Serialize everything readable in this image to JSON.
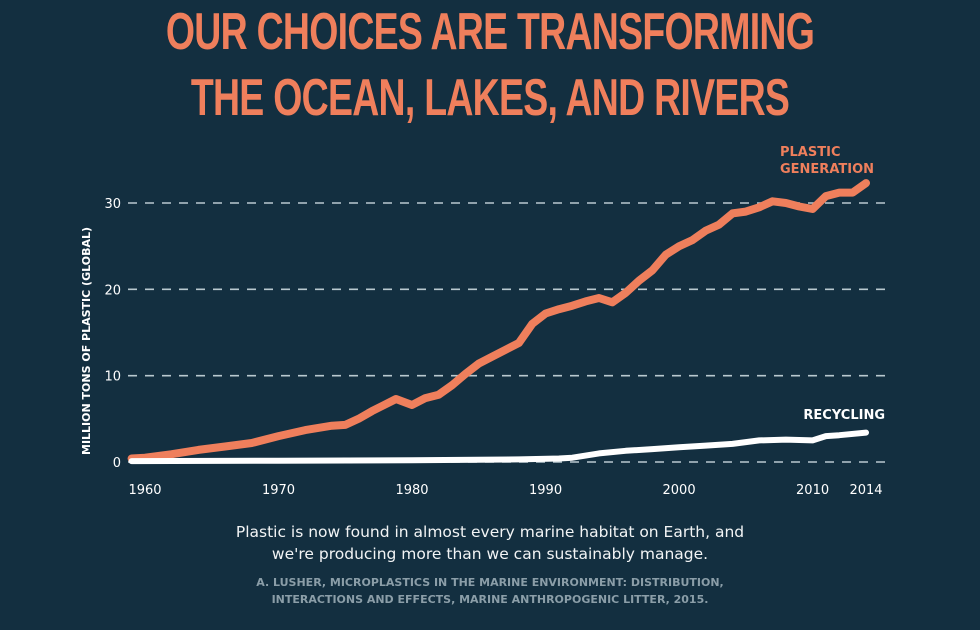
{
  "title_lines": [
    "OUR CHOICES ARE TRANSFORMING",
    "THE OCEAN, LAKES, AND RIVERS"
  ],
  "caption_lines": [
    "Plastic is now found in almost every marine habitat on Earth, and",
    "we're producing more than we can sustainably manage."
  ],
  "source_lines": [
    "A. LUSHER, MICROPLASTICS IN THE MARINE ENVIRONMENT: DISTRIBUTION,",
    "INTERACTIONS AND EFFECTS, MARINE ANTHROPOGENIC LITTER, 2015."
  ],
  "colors": {
    "background": "#132f40",
    "accent": "#ef7f5c",
    "recycling": "#ffffff",
    "grid": "#b9c9cf"
  },
  "chart_data": {
    "type": "line",
    "title": "OUR CHOICES ARE TRANSFORMING THE OCEAN, LAKES, AND RIVERS",
    "xlabel": "",
    "ylabel": "MILLION TONS OF PLASTIC (GLOBAL)",
    "ylim": [
      0,
      30
    ],
    "xlim": [
      1959,
      2014
    ],
    "grid": true,
    "x_ticks": [
      "1960",
      "1970",
      "1980",
      "1990",
      "2000",
      "2010",
      "2014"
    ],
    "y_ticks": [
      "0",
      "10",
      "20",
      "30"
    ],
    "series": [
      {
        "name": "PLASTIC GENERATION",
        "name_lines": [
          "PLASTIC",
          "GENERATION"
        ],
        "color": "#ef7f5c",
        "x": [
          1959,
          1960,
          1962,
          1964,
          1966,
          1968,
          1970,
          1972,
          1974,
          1975,
          1976,
          1977,
          1978.8,
          1980,
          1981,
          1982,
          1983,
          1984,
          1985,
          1986,
          1987,
          1988,
          1989,
          1990,
          1991,
          1992,
          1993,
          1994,
          1995,
          1996,
          1997,
          1998,
          1999,
          2000,
          2001,
          2002,
          2003,
          2004,
          2005,
          2006,
          2007,
          2008,
          2009,
          2010,
          2011,
          2012,
          2013,
          2014
        ],
        "y": [
          0.4,
          0.5,
          0.9,
          1.4,
          1.8,
          2.2,
          3.0,
          3.7,
          4.2,
          4.3,
          5.0,
          5.9,
          7.3,
          6.6,
          7.4,
          7.8,
          8.9,
          10.2,
          11.4,
          12.2,
          13.0,
          13.8,
          16.0,
          17.2,
          17.7,
          18.1,
          18.6,
          19.0,
          18.5,
          19.6,
          21.0,
          22.2,
          24.0,
          25.0,
          25.7,
          26.8,
          27.5,
          28.8,
          29.0,
          29.5,
          30.2,
          30.0,
          29.6,
          29.3,
          30.8,
          31.2,
          31.2,
          32.3
        ]
      },
      {
        "name": "RECYCLING",
        "color": "#ffffff",
        "x": [
          1959,
          1970,
          1980,
          1988,
          1991,
          1992,
          1994,
          1996,
          1998,
          2000,
          2002,
          2004,
          2006,
          2008,
          2010,
          2011,
          2012,
          2014
        ],
        "y": [
          0.1,
          0.15,
          0.2,
          0.3,
          0.4,
          0.5,
          1.0,
          1.3,
          1.5,
          1.7,
          1.9,
          2.1,
          2.5,
          2.6,
          2.5,
          3.0,
          3.1,
          3.4
        ]
      }
    ]
  }
}
